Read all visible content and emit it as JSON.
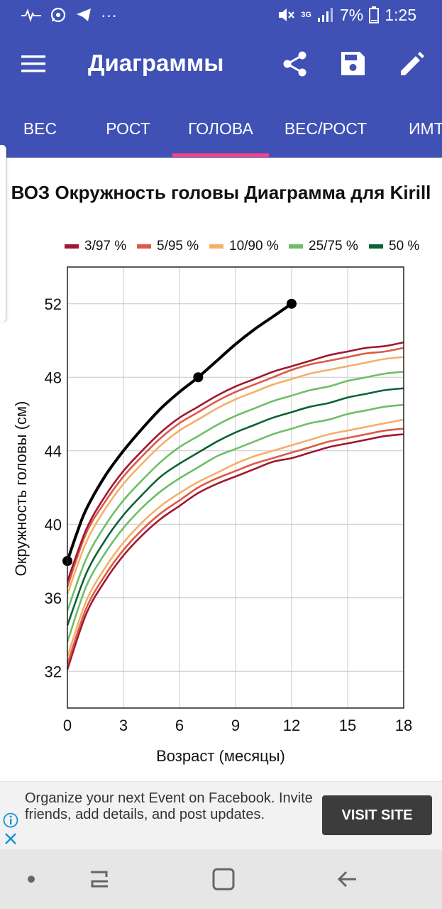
{
  "status_bar": {
    "battery": "7%",
    "time": "1:25",
    "network": "3G",
    "more": "···",
    "icons": [
      "pulse-icon",
      "whatsapp-icon",
      "telegram-icon",
      "more-icon",
      "mute-icon",
      "network-icon",
      "signal-icon",
      "battery-icon"
    ]
  },
  "app_bar": {
    "title": "Диаграммы",
    "icons": [
      "menu-icon",
      "share-icon",
      "save-icon",
      "edit-icon"
    ]
  },
  "tabs": [
    {
      "label": "ВЕС",
      "selected": false
    },
    {
      "label": "РОСТ",
      "selected": false
    },
    {
      "label": "ГОЛОВА",
      "selected": true
    },
    {
      "label": "ВЕС/РОСТ",
      "selected": false
    },
    {
      "label": "ИМТ",
      "selected": false
    }
  ],
  "colors": {
    "primary": "#3f51b5",
    "tab_indicator": "#ff4081",
    "p3_97": "#a01831",
    "p5_95": "#dc5a46",
    "p10_90": "#f3b06a",
    "p25_75": "#6dbf67",
    "p50": "#0b6236",
    "child": "#000000"
  },
  "chart_data": {
    "type": "line",
    "title": "ВОЗ Окружность головы Диаграмма для Kirill",
    "xlabel": "Возраст (месяцы)",
    "ylabel": "Окружность головы (см)",
    "xlim": [
      0,
      18
    ],
    "ylim": [
      30,
      54
    ],
    "xticks": [
      0,
      3,
      6,
      9,
      12,
      15,
      18
    ],
    "yticks": [
      32,
      36,
      40,
      44,
      48,
      52
    ],
    "grid": true,
    "legend_position": "top",
    "x": [
      0,
      1,
      2,
      3,
      4,
      5,
      6,
      7,
      8,
      9,
      10,
      11,
      12,
      13,
      14,
      15,
      16,
      17,
      18
    ],
    "legend": [
      {
        "label": "3/97 %",
        "color": "#a01831"
      },
      {
        "label": "5/95 %",
        "color": "#dc5a46"
      },
      {
        "label": "10/90 %",
        "color": "#f3b06a"
      },
      {
        "label": "25/75 %",
        "color": "#6dbf67"
      },
      {
        "label": "50 %",
        "color": "#0b6236"
      }
    ],
    "series": [
      {
        "color": "#a01831",
        "values": [
          32.1,
          35.1,
          36.9,
          38.3,
          39.4,
          40.3,
          41.0,
          41.7,
          42.2,
          42.6,
          43.0,
          43.4,
          43.6,
          43.9,
          44.2,
          44.4,
          44.6,
          44.8,
          44.9
        ]
      },
      {
        "color": "#dc5a46",
        "values": [
          32.4,
          35.4,
          37.2,
          38.6,
          39.7,
          40.6,
          41.3,
          42.0,
          42.5,
          42.9,
          43.3,
          43.6,
          43.9,
          44.2,
          44.5,
          44.7,
          44.9,
          45.1,
          45.2
        ]
      },
      {
        "color": "#f3b06a",
        "values": [
          32.8,
          35.8,
          37.6,
          39.0,
          40.1,
          41.0,
          41.7,
          42.3,
          42.8,
          43.3,
          43.7,
          44.0,
          44.3,
          44.6,
          44.9,
          45.1,
          45.3,
          45.5,
          45.7
        ]
      },
      {
        "color": "#6dbf67",
        "values": [
          33.6,
          36.6,
          38.4,
          39.8,
          40.9,
          41.8,
          42.5,
          43.1,
          43.7,
          44.1,
          44.5,
          44.9,
          45.2,
          45.5,
          45.7,
          46.0,
          46.2,
          46.4,
          46.5
        ]
      },
      {
        "color": "#0b6236",
        "values": [
          34.5,
          37.3,
          39.1,
          40.5,
          41.6,
          42.6,
          43.3,
          43.9,
          44.5,
          45.0,
          45.4,
          45.8,
          46.1,
          46.4,
          46.6,
          46.9,
          47.1,
          47.3,
          47.4
        ]
      },
      {
        "color": "#6dbf67",
        "values": [
          35.3,
          38.1,
          39.9,
          41.3,
          42.4,
          43.4,
          44.2,
          44.8,
          45.4,
          45.9,
          46.3,
          46.7,
          47.0,
          47.3,
          47.5,
          47.8,
          48.0,
          48.2,
          48.3
        ]
      },
      {
        "color": "#f3b06a",
        "values": [
          36.2,
          39.0,
          40.8,
          42.2,
          43.3,
          44.3,
          45.1,
          45.7,
          46.3,
          46.8,
          47.2,
          47.6,
          47.9,
          48.2,
          48.4,
          48.6,
          48.8,
          49.0,
          49.1
        ]
      },
      {
        "color": "#dc5a46",
        "values": [
          36.6,
          39.5,
          41.2,
          42.6,
          43.7,
          44.7,
          45.5,
          46.1,
          46.7,
          47.2,
          47.6,
          48.0,
          48.4,
          48.7,
          48.9,
          49.1,
          49.3,
          49.4,
          49.6
        ]
      },
      {
        "color": "#a01831",
        "values": [
          36.9,
          39.7,
          41.5,
          42.9,
          44.0,
          45.0,
          45.8,
          46.4,
          47.0,
          47.5,
          47.9,
          48.3,
          48.6,
          48.9,
          49.2,
          49.4,
          49.6,
          49.7,
          49.9
        ]
      }
    ],
    "child": {
      "name": "Kirill",
      "color": "#000000",
      "points": [
        {
          "x": 0,
          "y": 38
        },
        {
          "x": 7,
          "y": 48
        },
        {
          "x": 12,
          "y": 52
        }
      ],
      "curve": [
        [
          0,
          38
        ],
        [
          0.5,
          39.5
        ],
        [
          1,
          40.8
        ],
        [
          2,
          42.6
        ],
        [
          3,
          44.0
        ],
        [
          4,
          45.2
        ],
        [
          5,
          46.3
        ],
        [
          6,
          47.2
        ],
        [
          7,
          48.0
        ],
        [
          8,
          48.9
        ],
        [
          9,
          49.8
        ],
        [
          10,
          50.6
        ],
        [
          11,
          51.3
        ],
        [
          12,
          52.0
        ]
      ]
    }
  },
  "ad": {
    "text": "Organize your next Event on Facebook. Invite friends, add details, and post updates.",
    "button_label": "VISIT SITE"
  },
  "nav_bar": {
    "icons": [
      "nav-dot-icon",
      "recent-apps-icon",
      "home-icon",
      "back-icon"
    ]
  }
}
